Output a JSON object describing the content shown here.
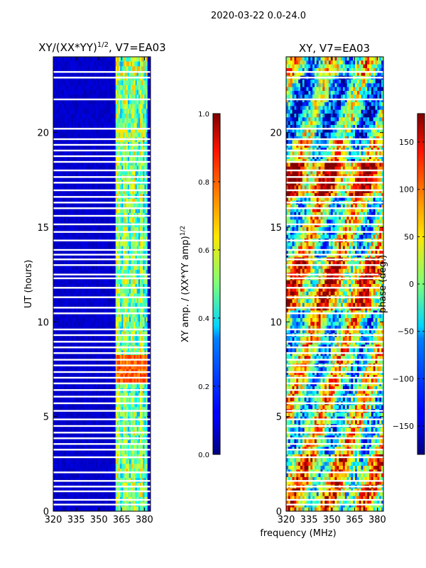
{
  "suptitle": "2020-03-22 0.0-24.0",
  "xlabel": "frequency (MHz)",
  "colors": {
    "background": "#ffffff",
    "frame": "#000000",
    "jet_low": "#00007f",
    "jet_high": "#7f0000"
  },
  "chart_data": [
    {
      "type": "heatmap",
      "title_main": "XY/(XX*YY)",
      "title_exp": "1/2",
      "title_suffix": ", V7=EA03",
      "xlabel": "",
      "ylabel": "UT (hours)",
      "xlim": [
        320,
        384
      ],
      "ylim": [
        0,
        24
      ],
      "xticks": [
        "320",
        "335",
        "350",
        "365",
        "380"
      ],
      "xtick_values": [
        320,
        335,
        350,
        365,
        380
      ],
      "yticks": [
        "0",
        "5",
        "10",
        "15",
        "20"
      ],
      "ytick_values": [
        0,
        5,
        10,
        15,
        20
      ],
      "colorbar": {
        "label_main": "XY amp. / (XX*YY amp)",
        "label_exp": "1/2",
        "range": [
          0.0,
          1.0
        ],
        "ticks": [
          "0.0",
          "0.2",
          "0.4",
          "0.6",
          "0.8",
          "1.0"
        ],
        "tick_values": [
          0.0,
          0.2,
          0.4,
          0.6,
          0.8,
          1.0
        ],
        "colormap": "jet"
      },
      "description_values": {
        "background_level": 0.05,
        "active_band_mhz": [
          361,
          382
        ],
        "active_band_level": 0.4,
        "peak_level": 0.8,
        "peak_hours": [
          6.8,
          8.2
        ]
      }
    },
    {
      "type": "heatmap",
      "title_main": "XY, V7=EA03",
      "xlabel": "frequency (MHz)",
      "ylabel": "",
      "xlim": [
        320,
        384
      ],
      "ylim": [
        0,
        24
      ],
      "xticks": [
        "320",
        "335",
        "350",
        "365",
        "380"
      ],
      "xtick_values": [
        320,
        335,
        350,
        365,
        380
      ],
      "yticks": [
        "0",
        "5",
        "10",
        "15",
        "20"
      ],
      "ytick_values": [
        0,
        5,
        10,
        15,
        20
      ],
      "colorbar": {
        "label_main": "phase (deg.)",
        "range": [
          -180,
          180
        ],
        "ticks": [
          "−150",
          "−100",
          "−50",
          "0",
          "50",
          "100",
          "150"
        ],
        "tick_values": [
          -150,
          -100,
          -50,
          0,
          50,
          100,
          150
        ],
        "colormap": "jet"
      }
    }
  ],
  "gap_hours": [
    0.35,
    0.6,
    1.05,
    1.3,
    1.6,
    2.05,
    2.85,
    3.25,
    3.55,
    3.85,
    4.15,
    4.5,
    4.85,
    5.3,
    5.7,
    6.05,
    6.4,
    6.75,
    7.05,
    7.35,
    7.7,
    8.0,
    8.35,
    8.65,
    8.95,
    9.3,
    9.6,
    10.45,
    10.75,
    11.3,
    11.8,
    12.3,
    12.5,
    13.0,
    13.3,
    13.55,
    13.8,
    14.3,
    14.75,
    15.15,
    15.6,
    16.0,
    16.3,
    16.6,
    16.95,
    17.35,
    17.65,
    18.0,
    18.45,
    18.75,
    19.05,
    19.35,
    19.65,
    20.2,
    21.75,
    22.9,
    23.2
  ]
}
